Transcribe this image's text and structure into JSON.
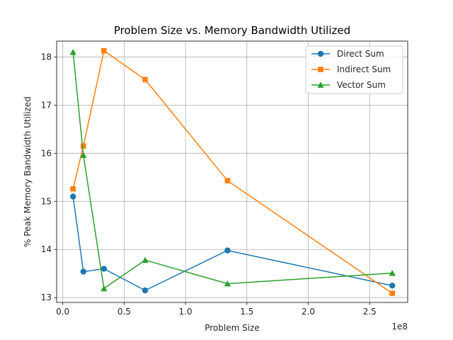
{
  "chart_data": {
    "type": "line",
    "title": "Problem Size vs. Memory Bandwidth Utilized",
    "xlabel": "Problem Size",
    "ylabel": "% Peak Memory Bandwidth Utilized",
    "x_offset_label": "1e8",
    "x_scale_factor": 100000000,
    "x": [
      8388608,
      16777216,
      33554432,
      67108864,
      134217728,
      268435456
    ],
    "xlim": [
      -5000000,
      281000000
    ],
    "ylim": [
      12.9,
      18.33
    ],
    "xticks": [
      0,
      50000000,
      100000000,
      150000000,
      200000000,
      250000000
    ],
    "xtick_labels": [
      "0.0",
      "0.5",
      "1.0",
      "1.5",
      "2.0",
      "2.5"
    ],
    "yticks": [
      13,
      14,
      15,
      16,
      17,
      18
    ],
    "ytick_labels": [
      "13",
      "14",
      "15",
      "16",
      "17",
      "18"
    ],
    "grid": true,
    "legend_position": "top-right",
    "series": [
      {
        "name": "Direct Sum",
        "marker": "circle",
        "color": "#1f77b4",
        "values": [
          15.1,
          13.54,
          13.6,
          13.15,
          13.98,
          13.25
        ]
      },
      {
        "name": "Indirect Sum",
        "marker": "square",
        "color": "#ff7f0e",
        "values": [
          15.26,
          16.15,
          18.13,
          17.53,
          15.43,
          13.09
        ]
      },
      {
        "name": "Vector Sum",
        "marker": "triangle",
        "color": "#2ca02c",
        "values": [
          18.1,
          15.96,
          13.19,
          13.78,
          13.29,
          13.51
        ]
      }
    ]
  }
}
